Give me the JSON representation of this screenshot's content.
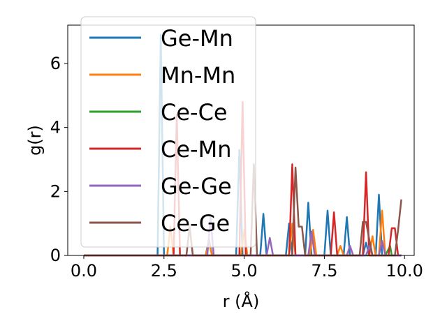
{
  "chart_data": {
    "type": "line",
    "xlabel": "r (Å)",
    "ylabel": "g(r)",
    "xlim": [
      -0.5,
      10.3
    ],
    "ylim": [
      0,
      7.2
    ],
    "xticks": [
      "0.0",
      "2.5",
      "5.0",
      "7.5",
      "10.0"
    ],
    "xtick_values": [
      0,
      2.5,
      5,
      7.5,
      10
    ],
    "yticks": [
      "0",
      "2",
      "4",
      "6"
    ],
    "ytick_values": [
      0,
      2,
      4,
      6
    ],
    "grid": false,
    "legend_position": "upper-left",
    "series": [
      {
        "name": "Ge-Mn",
        "color": "#1f77b4",
        "points": [
          [
            0,
            0
          ],
          [
            2.3,
            0
          ],
          [
            2.4,
            6.9
          ],
          [
            2.5,
            0
          ],
          [
            3.8,
            0
          ],
          [
            3.9,
            0.5
          ],
          [
            4.0,
            0
          ],
          [
            4.75,
            0
          ],
          [
            4.85,
            3.3
          ],
          [
            4.95,
            0
          ],
          [
            5.5,
            0
          ],
          [
            5.6,
            1.3
          ],
          [
            5.7,
            0
          ],
          [
            6.3,
            0
          ],
          [
            6.4,
            1.0
          ],
          [
            6.5,
            0
          ],
          [
            6.9,
            0
          ],
          [
            7.0,
            1.65
          ],
          [
            7.1,
            0
          ],
          [
            7.5,
            0
          ],
          [
            7.6,
            1.4
          ],
          [
            7.7,
            0
          ],
          [
            8.1,
            0
          ],
          [
            8.2,
            1.2
          ],
          [
            8.3,
            0
          ],
          [
            8.7,
            0
          ],
          [
            8.8,
            0.4
          ],
          [
            8.9,
            0
          ],
          [
            9.1,
            0
          ],
          [
            9.2,
            1.9
          ],
          [
            9.3,
            0
          ],
          [
            9.9,
            0
          ]
        ]
      },
      {
        "name": "Mn-Mn",
        "color": "#ff7f0e",
        "points": [
          [
            0,
            0
          ],
          [
            2.6,
            0
          ],
          [
            2.7,
            0.9
          ],
          [
            2.8,
            0
          ],
          [
            3.8,
            0
          ],
          [
            3.9,
            0.4
          ],
          [
            4.0,
            0
          ],
          [
            4.9,
            0
          ],
          [
            5.0,
            0.8
          ],
          [
            5.1,
            0
          ],
          [
            6.4,
            0
          ],
          [
            6.5,
            1.0
          ],
          [
            6.6,
            0
          ],
          [
            7.05,
            0
          ],
          [
            7.15,
            0.8
          ],
          [
            7.25,
            0
          ],
          [
            7.9,
            0
          ],
          [
            8.0,
            0.3
          ],
          [
            8.1,
            0
          ],
          [
            8.9,
            0
          ],
          [
            9.0,
            0.6
          ],
          [
            9.1,
            0
          ],
          [
            9.2,
            0
          ],
          [
            9.3,
            1.4
          ],
          [
            9.4,
            0
          ],
          [
            9.9,
            0
          ]
        ]
      },
      {
        "name": "Ce-Ce",
        "color": "#2ca02c",
        "points": [
          [
            0,
            0
          ],
          [
            9.4,
            0
          ],
          [
            9.55,
            0.3
          ],
          [
            9.6,
            0
          ],
          [
            9.9,
            0
          ]
        ]
      },
      {
        "name": "Ce-Mn",
        "color": "#d62728",
        "points": [
          [
            0,
            0
          ],
          [
            2.8,
            0
          ],
          [
            2.9,
            4.4
          ],
          [
            3.0,
            0
          ],
          [
            4.85,
            0
          ],
          [
            4.95,
            4.8
          ],
          [
            5.05,
            0
          ],
          [
            6.4,
            0
          ],
          [
            6.5,
            2.85
          ],
          [
            6.6,
            0
          ],
          [
            7.7,
            0
          ],
          [
            7.8,
            1.35
          ],
          [
            7.9,
            0
          ],
          [
            8.7,
            0
          ],
          [
            8.8,
            2.6
          ],
          [
            8.9,
            0
          ],
          [
            9.5,
            0
          ],
          [
            9.6,
            0.85
          ],
          [
            9.7,
            0.85
          ],
          [
            9.8,
            0
          ],
          [
            9.9,
            0
          ]
        ]
      },
      {
        "name": "Ge-Ge",
        "color": "#9467bd",
        "points": [
          [
            0,
            0
          ],
          [
            3.85,
            0
          ],
          [
            3.95,
            1.2
          ],
          [
            4.05,
            0
          ],
          [
            5.7,
            0
          ],
          [
            5.8,
            0.55
          ],
          [
            5.9,
            0
          ],
          [
            7.0,
            0
          ],
          [
            7.1,
            0.75
          ],
          [
            7.2,
            0
          ],
          [
            8.2,
            0
          ],
          [
            8.3,
            0.3
          ],
          [
            8.4,
            0
          ],
          [
            8.8,
            0
          ],
          [
            8.9,
            0.3
          ],
          [
            9.0,
            0
          ],
          [
            9.2,
            0
          ],
          [
            9.3,
            0.45
          ],
          [
            9.4,
            0
          ],
          [
            9.9,
            0
          ]
        ]
      },
      {
        "name": "Ce-Ge",
        "color": "#8c564b",
        "points": [
          [
            0,
            0
          ],
          [
            3.2,
            0
          ],
          [
            3.3,
            0.9
          ],
          [
            3.4,
            0
          ],
          [
            5.2,
            0
          ],
          [
            5.3,
            2.85
          ],
          [
            5.4,
            0
          ],
          [
            6.5,
            0
          ],
          [
            6.6,
            2.75
          ],
          [
            6.7,
            0.9
          ],
          [
            6.8,
            0.9
          ],
          [
            6.9,
            0
          ],
          [
            8.6,
            0
          ],
          [
            8.7,
            1.05
          ],
          [
            8.8,
            1.05
          ],
          [
            8.9,
            0.5
          ],
          [
            9.0,
            0
          ],
          [
            9.7,
            0
          ],
          [
            9.8,
            0.8
          ],
          [
            9.9,
            1.75
          ]
        ]
      }
    ]
  }
}
